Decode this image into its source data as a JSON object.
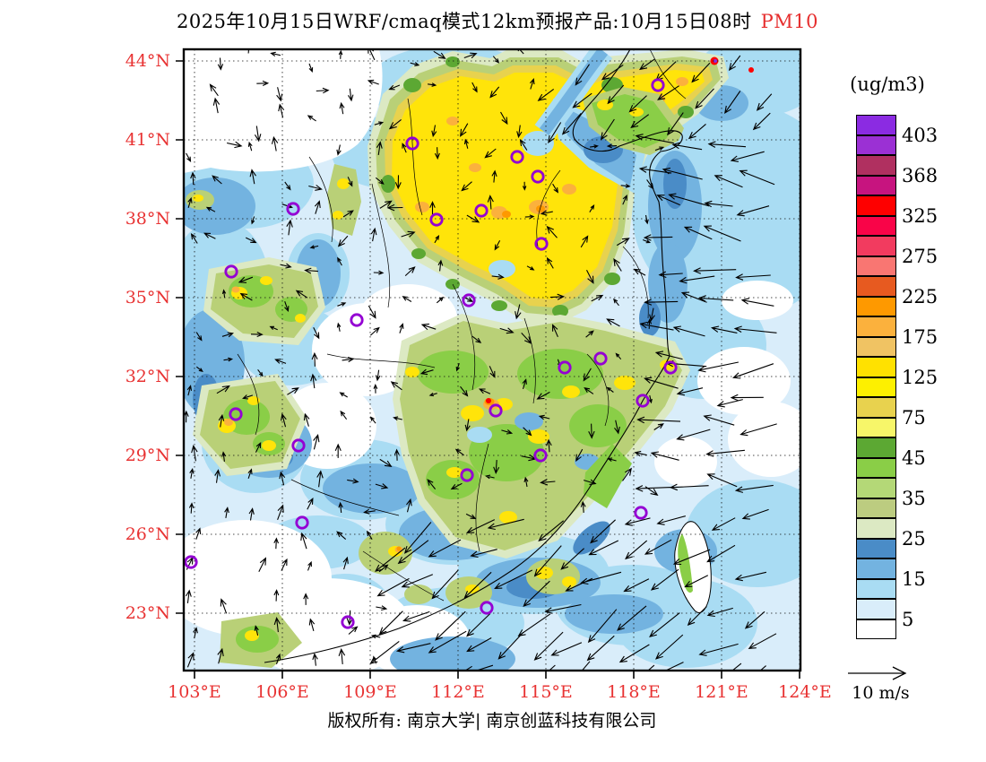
{
  "title": {
    "prefix": "2025年10月15日WRF/cmaq模式12km预报产品:10月15日08时",
    "pollutant": "PM10"
  },
  "colorbar": {
    "unit": "(ug/m3)",
    "labels": [
      "403",
      "368",
      "325",
      "275",
      "225",
      "175",
      "125",
      "75",
      "45",
      "35",
      "25",
      "15",
      "5"
    ],
    "colors": [
      "#8b2be2",
      "#9b30d4",
      "#b03060",
      "#c7147f",
      "#fe0000",
      "#f90448",
      "#f23b5f",
      "#f97672",
      "#e75a20",
      "#fe9900",
      "#fbb13d",
      "#f0c363",
      "#ffe100",
      "#fdf000",
      "#e8d24e",
      "#f7f669",
      "#5ca833",
      "#8ace47",
      "#b4d877",
      "#bccc80",
      "#dce9c3",
      "#4a8cc7",
      "#73b3e0",
      "#a9dcf3",
      "#d9edfa",
      "#ffffff"
    ]
  },
  "axes": {
    "lat": [
      "44°N",
      "41°N",
      "38°N",
      "35°N",
      "32°N",
      "29°N",
      "26°N",
      "23°N"
    ],
    "lon": [
      "103°E",
      "106°E",
      "109°E",
      "112°E",
      "115°E",
      "118°E",
      "121°E",
      "124°E"
    ],
    "label_color": "#e83333"
  },
  "wind_scale": "10 m/s",
  "footer": "版权所有: 南京大学| 南京创蓝科技有限公司"
}
